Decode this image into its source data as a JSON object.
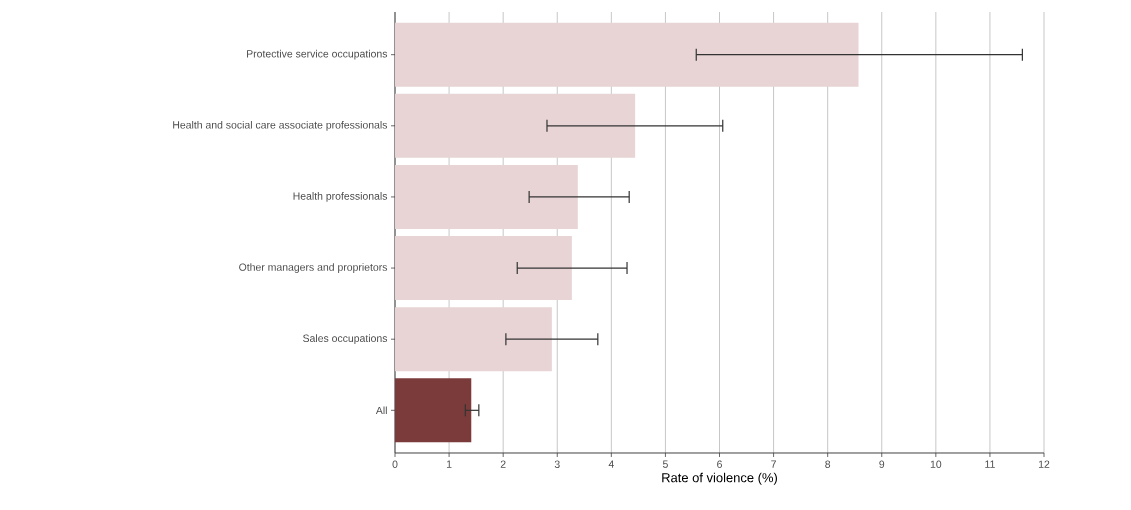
{
  "chart_data": {
    "type": "bar",
    "orientation": "horizontal",
    "xlabel": "Rate of violence (%)",
    "categories": [
      "Protective service occupations",
      "Health and social care associate professionals",
      "Health professionals",
      "Other managers and proprietors",
      "Sales occupations",
      "All"
    ],
    "values": [
      8.57,
      4.44,
      3.38,
      3.27,
      2.9,
      1.41
    ],
    "errors": [
      [
        5.57,
        11.6
      ],
      [
        2.81,
        6.06
      ],
      [
        2.48,
        4.33
      ],
      [
        2.26,
        4.29
      ],
      [
        2.05,
        3.75
      ],
      [
        1.3,
        1.55
      ]
    ],
    "colors": [
      "#e8d4d5",
      "#e8d4d5",
      "#e8d4d5",
      "#e8d4d5",
      "#e8d4d5",
      "#7b3b3b"
    ],
    "xlim": [
      0,
      12
    ],
    "xticks": [
      0,
      1,
      2,
      3,
      4,
      5,
      6,
      7,
      8,
      9,
      10,
      11,
      12
    ],
    "grid": "x"
  }
}
